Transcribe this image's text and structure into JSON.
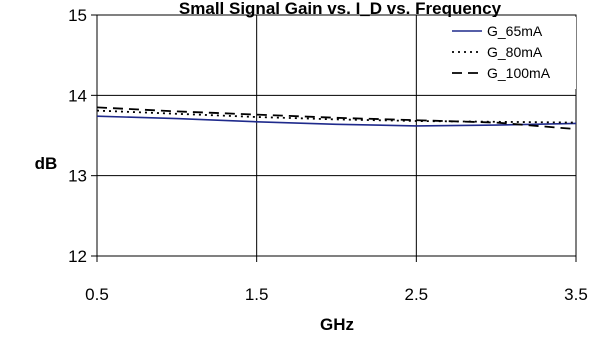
{
  "chart_data": {
    "type": "line",
    "title": "Small Signal Gain vs. I_D vs. Frequency",
    "xlabel": "GHz",
    "ylabel": "dB",
    "xlim": [
      0.5,
      3.5
    ],
    "ylim": [
      12,
      15
    ],
    "x_ticks": [
      "0.5",
      "1.5",
      "2.5",
      "3.5"
    ],
    "y_ticks": [
      "12",
      "13",
      "14",
      "15"
    ],
    "grid": true,
    "legend_position": "top-right",
    "series": [
      {
        "name": "G_65mA",
        "style": "solid",
        "color": "#1f2a8c",
        "x": [
          0.5,
          1.0,
          1.5,
          2.0,
          2.5,
          3.0,
          3.5
        ],
        "values": [
          13.74,
          13.71,
          13.67,
          13.64,
          13.62,
          13.63,
          13.65
        ]
      },
      {
        "name": "G_80mA",
        "style": "dotted",
        "color": "#000000",
        "x": [
          0.5,
          1.0,
          1.5,
          2.0,
          2.5,
          3.0,
          3.5
        ],
        "values": [
          13.81,
          13.77,
          13.73,
          13.7,
          13.68,
          13.67,
          13.66
        ]
      },
      {
        "name": "G_100mA",
        "style": "dashed",
        "color": "#000000",
        "x": [
          0.5,
          1.0,
          1.5,
          2.0,
          2.5,
          3.0,
          3.5
        ],
        "values": [
          13.85,
          13.8,
          13.76,
          13.72,
          13.69,
          13.66,
          13.58
        ]
      }
    ]
  }
}
